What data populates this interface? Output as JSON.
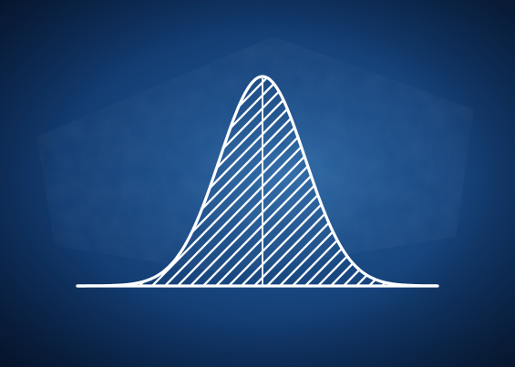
{
  "colors": {
    "board_center": "#2f6ba8",
    "board_edge": "#0a2550",
    "chalk": "#ffffff"
  },
  "diagram": {
    "shape": "normal-distribution-curve",
    "fill_pattern": "diagonal-hatching",
    "has_center_line": true,
    "has_baseline": true
  }
}
